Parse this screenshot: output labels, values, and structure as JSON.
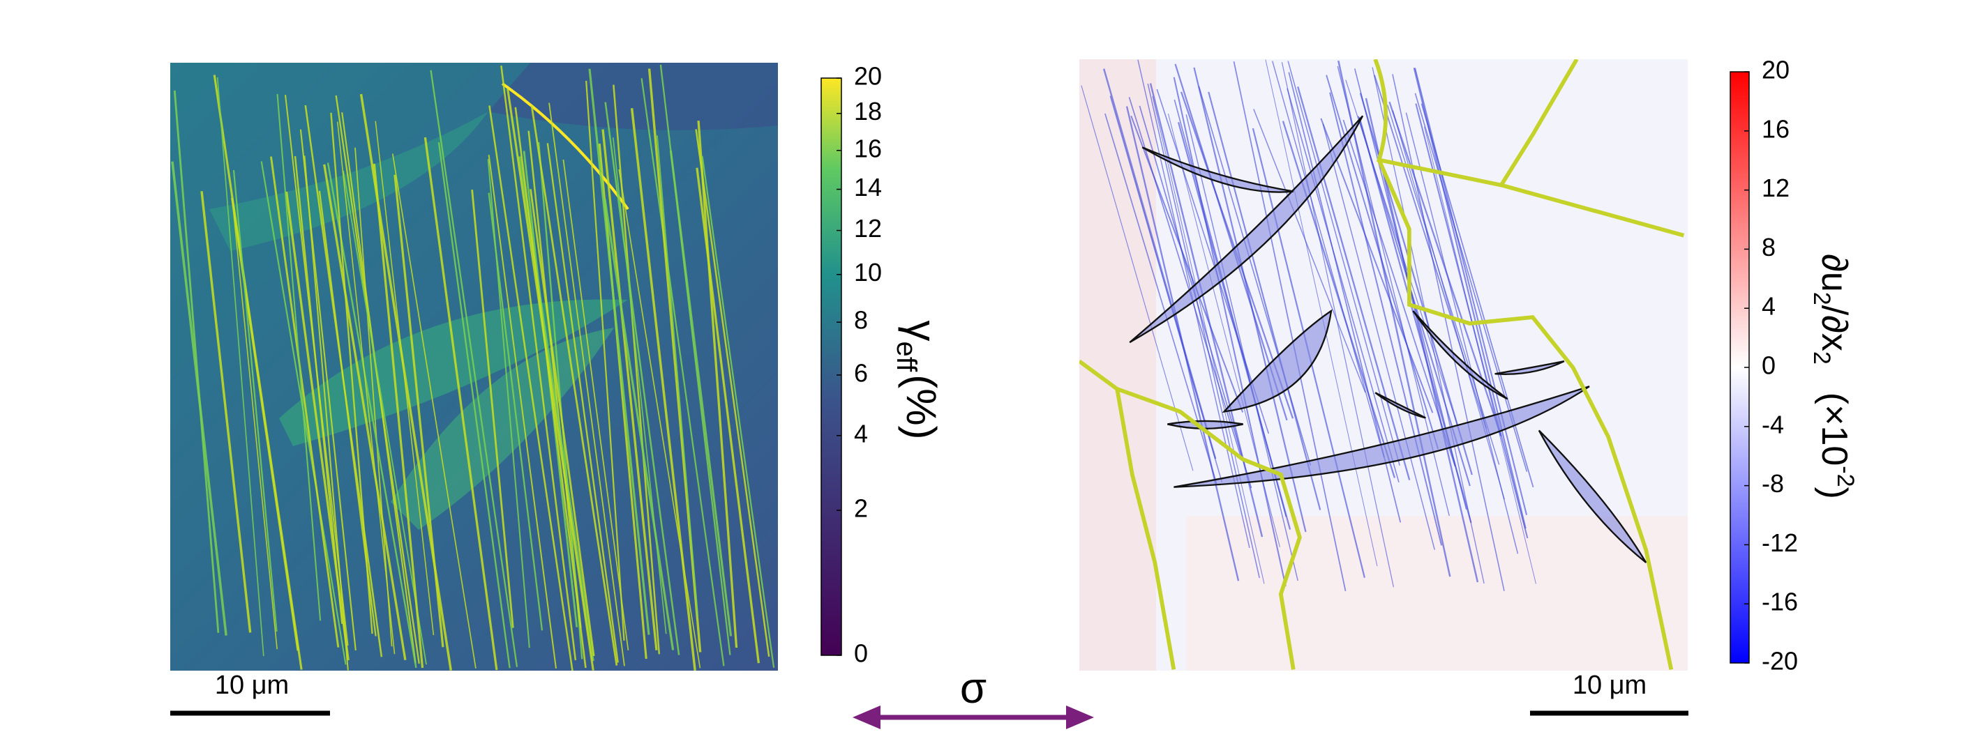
{
  "left_panel": {
    "colorbar": {
      "label": {
        "symbol": "γ",
        "subscript": "eff",
        "unit": "(%)"
      },
      "lim": [
        0,
        20
      ],
      "ticks": [
        0,
        2,
        4,
        6,
        8,
        10,
        12,
        14,
        16,
        18,
        20
      ],
      "scale_exponent": 0.6,
      "colormap": "viridis"
    },
    "scale_bar": "10 μm"
  },
  "right_panel": {
    "colorbar": {
      "label": {
        "numerator": "∂u",
        "numerator_subscript": "2",
        "denominator": "/∂x",
        "denominator_subscript": "2",
        "factor": "(×10",
        "factor_exponent": "-2",
        "factor_close": ")"
      },
      "lim": [
        -20,
        20
      ],
      "ticks": [
        -20,
        -16,
        -12,
        -8,
        -4,
        0,
        4,
        8,
        12,
        16,
        20
      ],
      "colormap": "bwr"
    },
    "scale_bar": "10 μm"
  },
  "loading_direction": "σ"
}
